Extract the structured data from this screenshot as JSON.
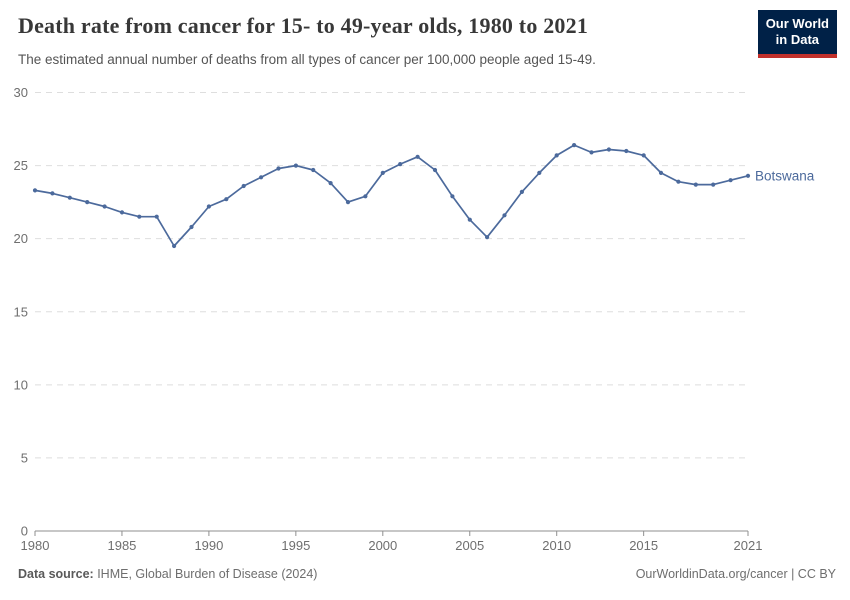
{
  "header": {
    "title": "Death rate from cancer for 15- to 49-year olds, 1980 to 2021",
    "subtitle": "The estimated annual number of deaths from all types of cancer per 100,000 people aged 15-49.",
    "logo": {
      "line1": "Our World",
      "line2": "in Data",
      "bg_color": "#002147",
      "accent_color": "#c1302b"
    }
  },
  "chart_data": {
    "type": "line",
    "title": "Death rate from cancer for 15- to 49-year olds, 1980 to 2021",
    "xlabel": "",
    "ylabel": "",
    "xlim": [
      1980,
      2021
    ],
    "ylim": [
      0,
      30
    ],
    "xticks": [
      1980,
      1985,
      1990,
      1995,
      2000,
      2005,
      2010,
      2015,
      2021
    ],
    "yticks": [
      0,
      5,
      10,
      15,
      20,
      25,
      30
    ],
    "grid": "horizontal-dashed",
    "legend_position": "end-of-line-label",
    "series": [
      {
        "name": "Botswana",
        "color": "#4c6a9c",
        "x": [
          1980,
          1981,
          1982,
          1983,
          1984,
          1985,
          1986,
          1987,
          1988,
          1989,
          1990,
          1991,
          1992,
          1993,
          1994,
          1995,
          1996,
          1997,
          1998,
          1999,
          2000,
          2001,
          2002,
          2003,
          2004,
          2005,
          2006,
          2007,
          2008,
          2009,
          2010,
          2011,
          2012,
          2013,
          2014,
          2015,
          2016,
          2017,
          2018,
          2019,
          2020,
          2021
        ],
        "values": [
          23.3,
          23.1,
          22.8,
          22.5,
          22.2,
          21.8,
          21.5,
          21.5,
          19.5,
          20.8,
          22.2,
          22.7,
          23.6,
          24.2,
          24.8,
          25.0,
          24.7,
          23.8,
          22.5,
          22.9,
          24.5,
          25.1,
          25.6,
          24.7,
          22.9,
          21.3,
          20.1,
          21.6,
          23.2,
          24.5,
          25.7,
          26.4,
          25.9,
          26.1,
          26.0,
          25.7,
          24.5,
          23.9,
          23.7,
          23.7,
          24.0,
          24.3
        ]
      }
    ],
    "axis_colors": {
      "tick_label": "#6f6f6f",
      "gridline": "#dedede",
      "axis_line": "#8f8f8f"
    }
  },
  "footer": {
    "source_label": "Data source:",
    "source_text": " IHME, Global Burden of Disease (2024)",
    "link_text": "OurWorldinData.org/cancer | CC BY"
  }
}
